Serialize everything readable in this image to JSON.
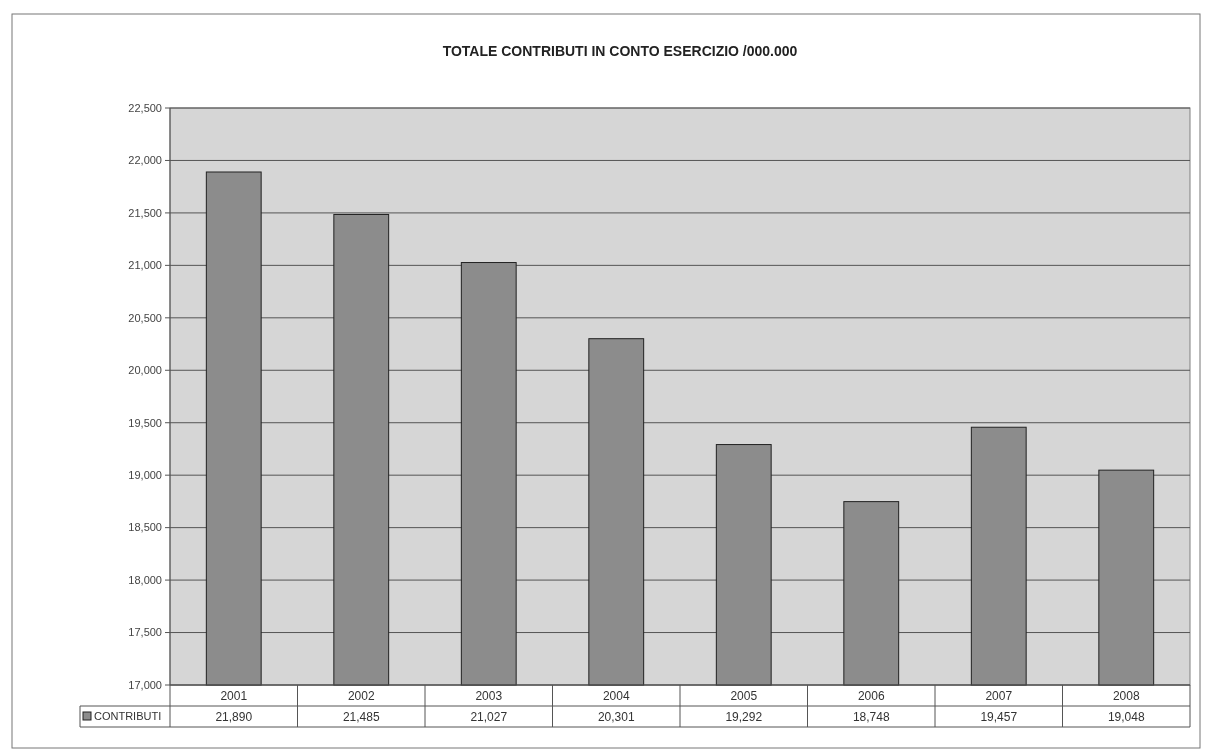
{
  "chart_data": {
    "type": "bar",
    "title": "TOTALE CONTRIBUTI IN CONTO ESERCIZIO /000.000",
    "categories": [
      "2001",
      "2002",
      "2003",
      "2004",
      "2005",
      "2006",
      "2007",
      "2008"
    ],
    "series": [
      {
        "name": "CONTRIBUTI",
        "color": "#8c8c8c",
        "values": [
          21890,
          21485,
          21027,
          20301,
          19292,
          18748,
          19457,
          19048
        ],
        "value_labels": [
          "21,890",
          "21,485",
          "21,027",
          "20,301",
          "19,292",
          "18,748",
          "19,457",
          "19,048"
        ]
      }
    ],
    "ylim": [
      17000,
      22500
    ],
    "yticks": [
      {
        "value": 17000,
        "label": "17,000"
      },
      {
        "value": 17500,
        "label": "17,500"
      },
      {
        "value": 18000,
        "label": "18,000"
      },
      {
        "value": 18500,
        "label": "18,500"
      },
      {
        "value": 19000,
        "label": "19,000"
      },
      {
        "value": 19500,
        "label": "19,500"
      },
      {
        "value": 20000,
        "label": "20,000"
      },
      {
        "value": 20500,
        "label": "20,500"
      },
      {
        "value": 21000,
        "label": "21,000"
      },
      {
        "value": 21500,
        "label": "21,500"
      },
      {
        "value": 22000,
        "label": "22,000"
      },
      {
        "value": 22500,
        "label": "22,500"
      }
    ],
    "grid": "y",
    "legend": "bottom"
  }
}
